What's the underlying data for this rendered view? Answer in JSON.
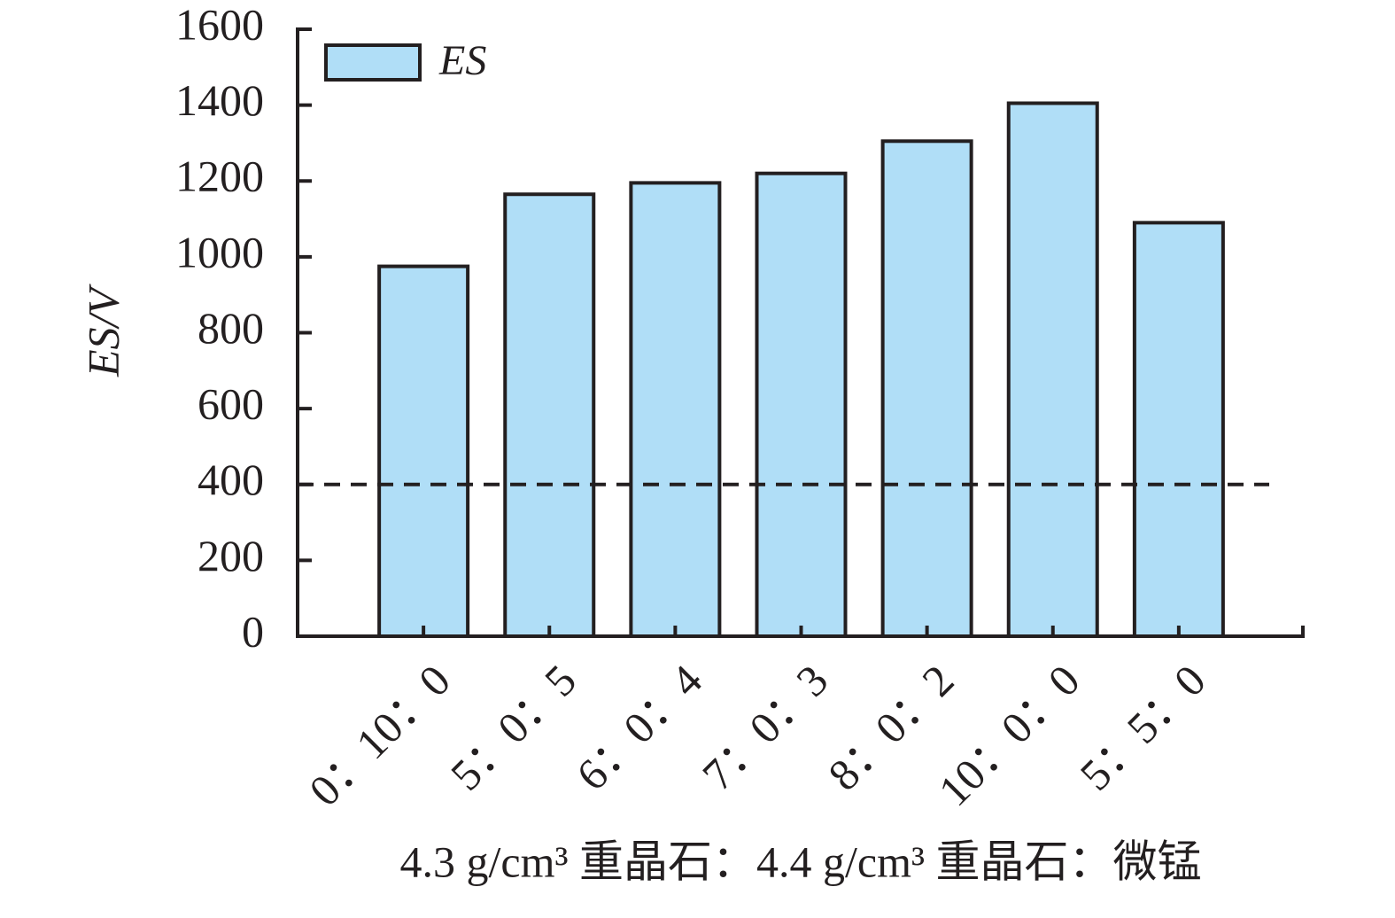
{
  "chart_data": {
    "type": "bar",
    "y_label": "ES/V",
    "x_label": "4.3 g/cm³ 重晶石：4.4 g/cm³ 重晶石：微锰",
    "legend": "ES",
    "legend_position": "upper left",
    "categories": [
      "0：10：0",
      "5：0：5",
      "6：0：4",
      "7：0：3",
      "8：0：2",
      "10：0：0",
      "5：5：0"
    ],
    "values": [
      975,
      1165,
      1195,
      1220,
      1305,
      1405,
      1090
    ],
    "color": "#b0def7",
    "reference_line": 400,
    "ylim": [
      0,
      1600
    ],
    "yticks": [
      0,
      200,
      400,
      600,
      800,
      1000,
      1200,
      1400,
      1600
    ]
  }
}
